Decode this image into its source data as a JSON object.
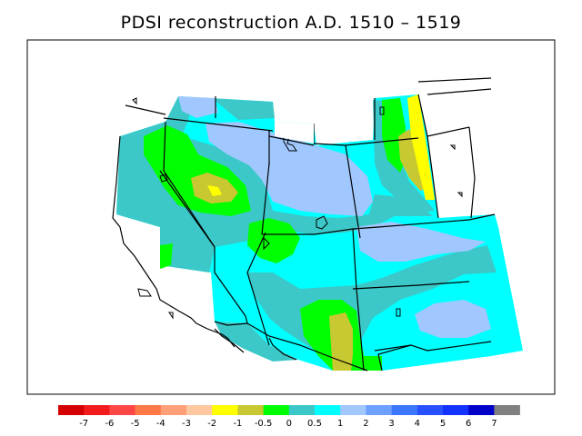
{
  "title": "PDSI reconstruction A.D. 1510 – 1519",
  "legend": {
    "colors": [
      "#d40000",
      "#f21c1c",
      "#ff4646",
      "#ff7846",
      "#ffa078",
      "#ffc8a0",
      "#ffff00",
      "#c8c832",
      "#00ff00",
      "#3cc8c8",
      "#00ffff",
      "#a0c8ff",
      "#6ea0ff",
      "#3c78ff",
      "#2850ff",
      "#1432ff",
      "#0000c8",
      "#808080"
    ],
    "labels": [
      "-7",
      "-6",
      "-5",
      "-4",
      "-3",
      "-2",
      "-1",
      "-0.5",
      "0",
      "0.5",
      "1",
      "2",
      "3",
      "4",
      "5",
      "6",
      "7"
    ]
  },
  "map": {
    "region": "Western United States",
    "categories_shown": [
      "-1",
      "-0.5",
      "0",
      "0.5",
      "1",
      "2"
    ]
  }
}
